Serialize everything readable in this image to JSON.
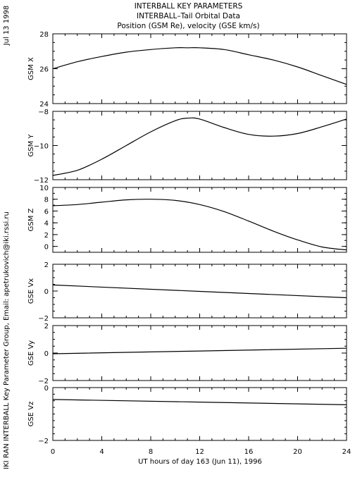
{
  "header": {
    "title_lines": [
      "INTERBALL KEY PARAMETERS",
      "INTERBALL–Tail Orbital Data",
      "Position (GSM Re), velocity (GSE km/s)"
    ]
  },
  "side": {
    "date": "Jul 13 1998",
    "credit": "IKI RAN INTERBALL Key Parameter Group, Email: apetrukovich@iki.rssi.ru"
  },
  "colors": {
    "line": "#000000",
    "background": "#ffffff"
  },
  "chart_data": [
    {
      "type": "line",
      "ylabel": "GSM X",
      "ylim": [
        24,
        28
      ],
      "yticks": [
        24,
        26,
        28
      ],
      "minor_step": 0.5,
      "x": [
        0,
        2,
        4,
        6,
        8,
        10,
        11,
        12,
        14,
        16,
        18,
        20,
        22,
        24
      ],
      "series": [
        {
          "values": [
            26.0,
            26.4,
            26.7,
            26.95,
            27.1,
            27.2,
            27.2,
            27.2,
            27.1,
            26.8,
            26.5,
            26.1,
            25.6,
            25.1
          ]
        }
      ]
    },
    {
      "type": "line",
      "ylabel": "GSM Y",
      "ylim": [
        -12,
        -8
      ],
      "yticks": [
        -12,
        -10,
        -8
      ],
      "minor_step": 0.5,
      "x": [
        0,
        2,
        4,
        6,
        8,
        10,
        11,
        12,
        14,
        16,
        18,
        20,
        22,
        24
      ],
      "series": [
        {
          "values": [
            -11.75,
            -11.45,
            -10.8,
            -10.0,
            -9.2,
            -8.55,
            -8.4,
            -8.45,
            -8.95,
            -9.35,
            -9.45,
            -9.3,
            -8.9,
            -8.45
          ]
        }
      ]
    },
    {
      "type": "line",
      "ylabel": "GSM Z",
      "ylim": [
        -1,
        10
      ],
      "yticks": [
        0,
        2,
        4,
        6,
        8,
        10
      ],
      "minor_step": 1,
      "x": [
        0,
        2,
        4,
        6,
        8,
        10,
        12,
        14,
        16,
        18,
        20,
        22,
        24
      ],
      "series": [
        {
          "values": [
            6.9,
            7.1,
            7.5,
            7.9,
            8.0,
            7.8,
            7.1,
            5.9,
            4.3,
            2.6,
            1.1,
            -0.1,
            -0.6
          ]
        }
      ]
    },
    {
      "type": "line",
      "ylabel": "GSE Vx",
      "ylim": [
        -2,
        2
      ],
      "yticks": [
        -2,
        0,
        2
      ],
      "minor_step": 0.5,
      "x": [
        0,
        24
      ],
      "series": [
        {
          "values": [
            0.45,
            -0.5
          ]
        }
      ]
    },
    {
      "type": "line",
      "ylabel": "GSE Vy",
      "ylim": [
        -2,
        2
      ],
      "yticks": [
        -2,
        0,
        2
      ],
      "minor_step": 0.5,
      "x": [
        0,
        24
      ],
      "series": [
        {
          "values": [
            -0.05,
            0.35
          ]
        }
      ]
    },
    {
      "type": "line",
      "ylabel": "GSE Vz",
      "ylim": [
        -2,
        0
      ],
      "yticks": [
        -2,
        0
      ],
      "minor_step": 0.25,
      "x": [
        0,
        24
      ],
      "series": [
        {
          "values": [
            -0.45,
            -0.65
          ]
        }
      ]
    }
  ],
  "x_axis": {
    "label": "UT hours of day 163 (Jun 11), 1996",
    "xlim": [
      0,
      24
    ],
    "ticks": [
      0,
      4,
      8,
      12,
      16,
      20,
      24
    ],
    "minor_step": 1
  }
}
